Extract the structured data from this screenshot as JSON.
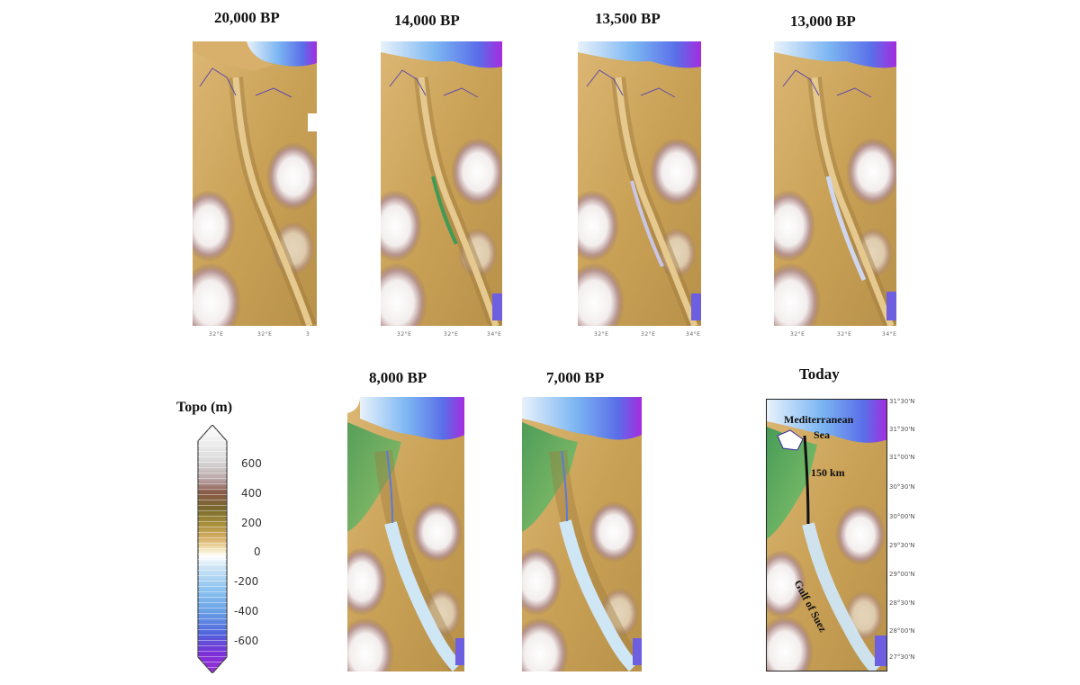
{
  "panels": {
    "p20000": {
      "title": "20,000 BP",
      "ticks": [
        "32°E",
        "32°E",
        "3"
      ]
    },
    "p14000": {
      "title": "14,000 BP",
      "ticks": [
        "32°E",
        "32°E",
        "34°E"
      ]
    },
    "p13500": {
      "title": "13,500 BP",
      "ticks": [
        "32°E",
        "32°E",
        "34°E"
      ]
    },
    "p13000": {
      "title": "13,000 BP",
      "ticks": [
        "32°E",
        "32°E",
        "34°E"
      ]
    },
    "p8000": {
      "title": "8,000 BP"
    },
    "p7000": {
      "title": "7,000 BP"
    },
    "today": {
      "title": "Today",
      "sea_label_1": "Mediterranean",
      "sea_label_2": "Sea",
      "distance_label": "150 km",
      "gulf_label": "Gulf of Suez",
      "lat_labels": [
        "31°30'N",
        "31°30'N",
        "31°00'N",
        "30°30'N",
        "30°00'N",
        "29°30'N",
        "29°00'N",
        "28°30'N",
        "28°00'N",
        "27°30'N"
      ]
    }
  },
  "colorbar": {
    "title": "Topo (m)",
    "labels": [
      "600",
      "400",
      "200",
      "0",
      "-200",
      "-400",
      "-600"
    ],
    "colors": {
      "high": "#ffffff",
      "brown": "#8b5a4a",
      "olive": "#8c7a2a",
      "sand": "#d9b26a",
      "shallow": "#cfe6f5",
      "mid": "#6aa2e6",
      "deep": "#7b2fd6"
    }
  }
}
